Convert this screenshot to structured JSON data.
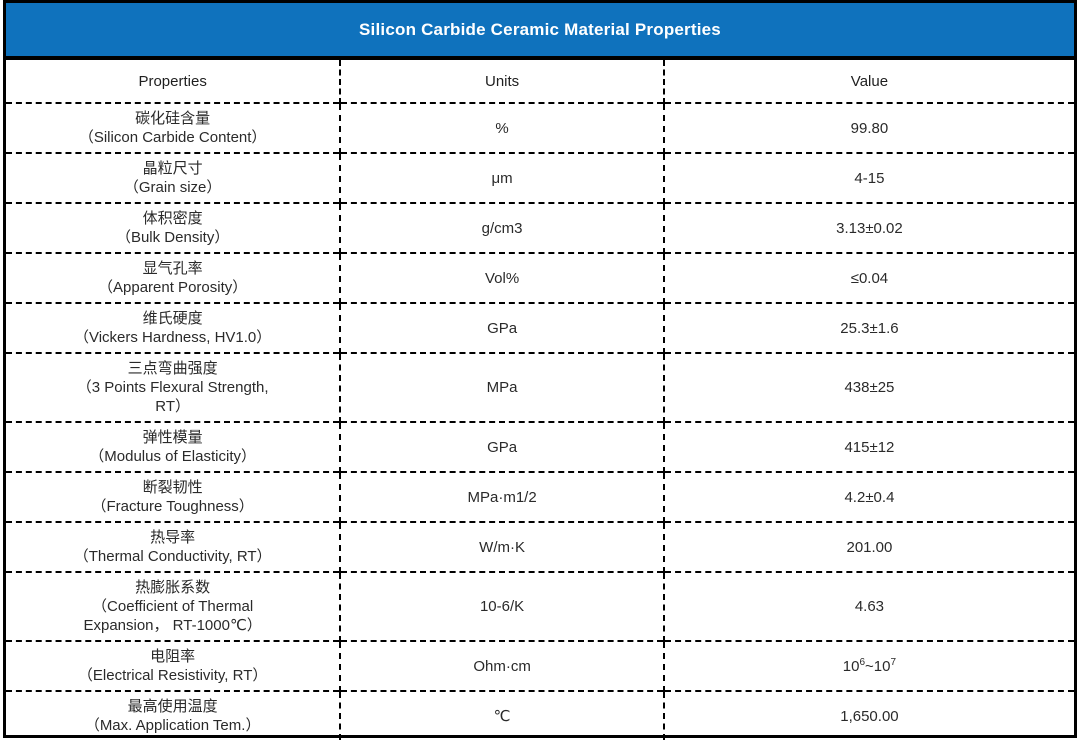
{
  "title": "Silicon Carbide Ceramic Material Properties",
  "colors": {
    "header_bg": "#0f72bd",
    "header_text": "#ffffff",
    "border": "#000000",
    "body_text": "#2a2a2a"
  },
  "table": {
    "columns": [
      "Properties",
      "Units",
      "Value"
    ],
    "rows": [
      {
        "property_lines": [
          "碳化硅含量",
          "（Silicon Carbide Content）"
        ],
        "unit": "%",
        "value": "99.80"
      },
      {
        "property_lines": [
          "晶粒尺寸",
          "（Grain size）"
        ],
        "unit": "μm",
        "value": "4-15"
      },
      {
        "property_lines": [
          "体积密度",
          "（Bulk Density）"
        ],
        "unit": "g/cm3",
        "value": "3.13±0.02"
      },
      {
        "property_lines": [
          "显气孔率",
          "（Apparent Porosity）"
        ],
        "unit": "Vol%",
        "value": "≤0.04"
      },
      {
        "property_lines": [
          "维氏硬度",
          "（Vickers Hardness, HV1.0）"
        ],
        "unit": "GPa",
        "value": "25.3±1.6"
      },
      {
        "property_lines": [
          "三点弯曲强度",
          "（3 Points Flexural Strength,",
          "RT）"
        ],
        "unit": "MPa",
        "value": "438±25"
      },
      {
        "property_lines": [
          "弹性模量",
          "（Modulus of Elasticity）"
        ],
        "unit": "GPa",
        "value": "415±12"
      },
      {
        "property_lines": [
          "断裂韧性",
          "（Fracture Toughness）"
        ],
        "unit": "MPa·m1/2",
        "value": "4.2±0.4"
      },
      {
        "property_lines": [
          "热导率",
          "（Thermal Conductivity, RT）"
        ],
        "unit": "W/m·K",
        "value": "201.00"
      },
      {
        "property_lines": [
          "热膨胀系数",
          "（Coefficient of Thermal",
          "Expansion， RT-1000℃）"
        ],
        "unit": "10-6/K",
        "value": "4.63"
      },
      {
        "property_lines": [
          "电阻率",
          "（Electrical Resistivity, RT）"
        ],
        "unit": "Ohm·cm",
        "value_parts": [
          {
            "t": "10"
          },
          {
            "sup": "6"
          },
          {
            "t": "~10"
          },
          {
            "sup": "7"
          }
        ]
      },
      {
        "property_lines": [
          "最高使用温度",
          "（Max. Application Tem.）"
        ],
        "unit": "℃",
        "value": "1,650.00"
      }
    ]
  }
}
